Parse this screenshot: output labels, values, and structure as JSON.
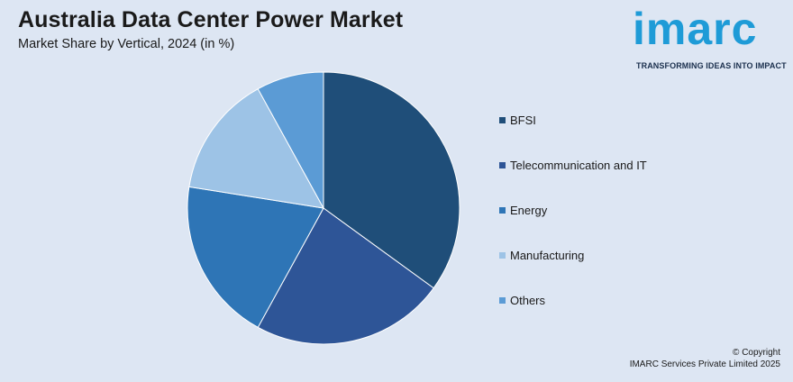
{
  "header": {
    "title": "Australia Data Center Power Market",
    "subtitle": "Market Share by Vertical, 2024 (in %)"
  },
  "logo": {
    "word": "imarc",
    "tagline": "TRANSFORMING IDEAS INTO IMPACT",
    "color": "#1e9bd7"
  },
  "chart_data": {
    "type": "pie",
    "title": "Australia Data Center Power Market",
    "subtitle": "Market Share by Vertical, 2024 (in %)",
    "start_angle_deg": 0,
    "direction": "clockwise",
    "legend_position": "right",
    "series": [
      {
        "name": "BFSI",
        "value": 35.0,
        "color": "#1f4e79"
      },
      {
        "name": "Telecommunication and IT",
        "value": 23.0,
        "color": "#2e5597"
      },
      {
        "name": "Energy",
        "value": 19.5,
        "color": "#2e75b6"
      },
      {
        "name": "Manufacturing",
        "value": 14.5,
        "color": "#9dc3e6"
      },
      {
        "name": "Others",
        "value": 8.0,
        "color": "#5b9bd5"
      }
    ]
  },
  "footer": {
    "copyright_line1": "© Copyright",
    "copyright_line2": "IMARC Services Private Limited 2025"
  }
}
